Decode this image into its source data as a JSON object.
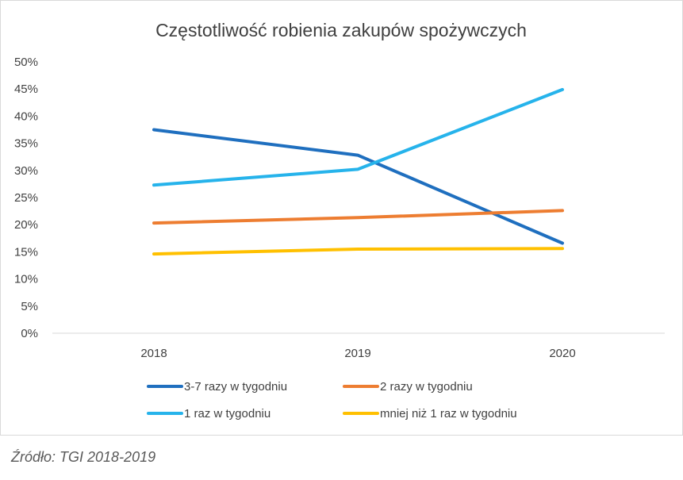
{
  "chart_data": {
    "type": "line",
    "title": "Częstotliwość robienia zakupów spożywczych",
    "xlabel": "",
    "ylabel": "",
    "categories": [
      "2018",
      "2019",
      "2020"
    ],
    "ylim": [
      0,
      50
    ],
    "yticks": [
      "0%",
      "5%",
      "10%",
      "15%",
      "20%",
      "25%",
      "30%",
      "35%",
      "40%",
      "45%",
      "50%"
    ],
    "grid": false,
    "legend_position": "bottom",
    "series": [
      {
        "name": "3-7 razy w tygodniu",
        "values": [
          37.5,
          32.8,
          16.6
        ],
        "color": "#1f6fbf"
      },
      {
        "name": "2 razy w tygodniu",
        "values": [
          20.3,
          21.3,
          22.6
        ],
        "color": "#ed7d31"
      },
      {
        "name": "1 raz w tygodniu",
        "values": [
          27.3,
          30.2,
          44.9
        ],
        "color": "#26b3eb"
      },
      {
        "name": "mniej niż 1 raz w tygodniu",
        "values": [
          14.6,
          15.5,
          15.6
        ],
        "color": "#ffc000"
      }
    ]
  },
  "footer": {
    "source": "Źródło: TGI 2018-2019"
  }
}
